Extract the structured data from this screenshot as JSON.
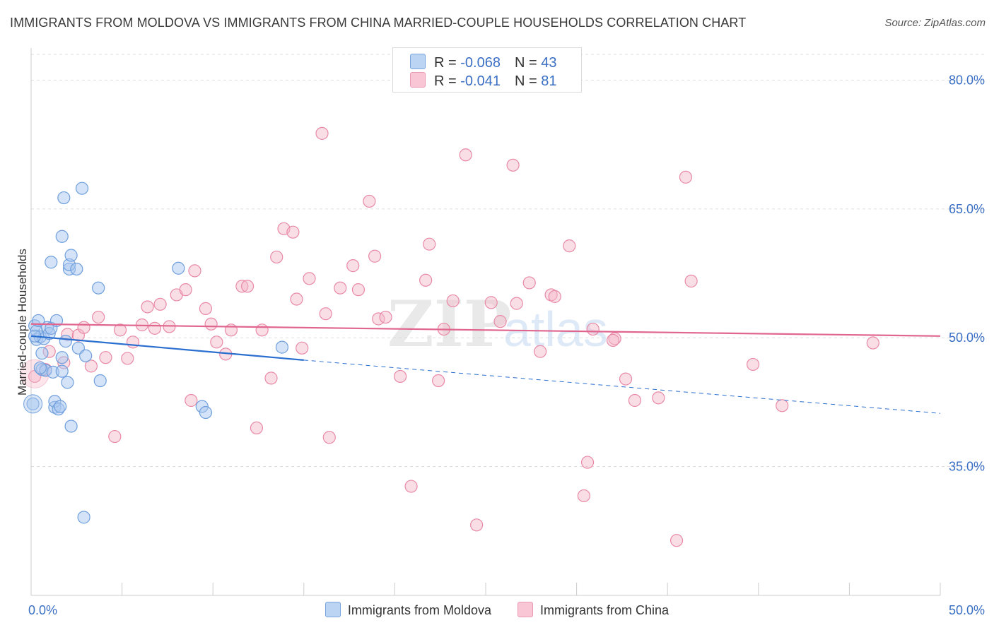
{
  "title": "IMMIGRANTS FROM MOLDOVA VS IMMIGRANTS FROM CHINA MARRIED-COUPLE HOUSEHOLDS CORRELATION CHART",
  "source": "Source: ZipAtlas.com",
  "colors": {
    "moldova_fill": "#a9c8f0",
    "moldova_stroke": "#6f9fdc",
    "moldova_line": "#2a6fcf",
    "china_fill": "#f5b6c8",
    "china_stroke": "#e88aa7",
    "china_line": "#e0668f",
    "axis_label": "#3a6fc4",
    "grid": "#dddddd"
  },
  "legend": {
    "rows": [
      {
        "r_label": "R = ",
        "r_value": "-0.068",
        "n_label": "N = ",
        "n_value": "43"
      },
      {
        "r_label": "R = ",
        "r_value": "-0.041",
        "n_label": "N = ",
        "n_value": "81"
      }
    ]
  },
  "chart_data": {
    "type": "scatter",
    "title": "IMMIGRANTS FROM MOLDOVA VS IMMIGRANTS FROM CHINA MARRIED-COUPLE HOUSEHOLDS CORRELATION CHART",
    "xlabel": "",
    "ylabel": "Married-couple Households",
    "xlim": [
      0,
      50
    ],
    "ylim": [
      20,
      83
    ],
    "x_tick_labels": [
      {
        "value": 0,
        "label": "0.0%"
      },
      {
        "value": 50,
        "label": "50.0%"
      }
    ],
    "y_tick_labels": [
      {
        "value": 80,
        "label": "80.0%"
      },
      {
        "value": 65,
        "label": "65.0%"
      },
      {
        "value": 50,
        "label": "50.0%"
      },
      {
        "value": 35,
        "label": "35.0%"
      }
    ],
    "watermark": {
      "zip": "ZIP",
      "atlas": "atlas"
    },
    "series": [
      {
        "name": "Immigrants from Moldova",
        "trend": {
          "x0": 0,
          "y0": 50.2,
          "x1": 15,
          "y1": 47.4,
          "dash_to_x": 50,
          "dash_to_y": 41.2
        },
        "points": [
          [
            0.1,
            42.3
          ],
          [
            0.2,
            51.4
          ],
          [
            0.3,
            50.8
          ],
          [
            0.3,
            49.8
          ],
          [
            0.4,
            52.0
          ],
          [
            0.5,
            50.1
          ],
          [
            0.6,
            48.2
          ],
          [
            0.6,
            46.3
          ],
          [
            0.7,
            49.9
          ],
          [
            0.8,
            46.2
          ],
          [
            0.9,
            51.2
          ],
          [
            1.0,
            50.5
          ],
          [
            1.1,
            51.1
          ],
          [
            1.1,
            58.8
          ],
          [
            1.2,
            46.0
          ],
          [
            1.3,
            41.9
          ],
          [
            1.3,
            42.6
          ],
          [
            1.4,
            52.0
          ],
          [
            1.5,
            41.7
          ],
          [
            1.6,
            42.0
          ],
          [
            1.7,
            47.7
          ],
          [
            1.7,
            46.1
          ],
          [
            1.7,
            61.8
          ],
          [
            1.8,
            66.3
          ],
          [
            1.9,
            49.6
          ],
          [
            2.0,
            44.8
          ],
          [
            2.1,
            58.0
          ],
          [
            2.1,
            58.5
          ],
          [
            2.2,
            59.6
          ],
          [
            2.2,
            39.7
          ],
          [
            2.5,
            58.0
          ],
          [
            2.6,
            48.8
          ],
          [
            2.8,
            67.4
          ],
          [
            2.9,
            29.1
          ],
          [
            3.0,
            47.9
          ],
          [
            3.7,
            55.8
          ],
          [
            3.8,
            45.0
          ],
          [
            8.1,
            58.1
          ],
          [
            9.4,
            42.0
          ],
          [
            9.6,
            41.3
          ],
          [
            13.8,
            48.9
          ],
          [
            0.2,
            50.2
          ],
          [
            0.5,
            46.5
          ]
        ]
      },
      {
        "name": "Immigrants from China",
        "trend": {
          "x0": 0,
          "y0": 51.6,
          "x1": 50,
          "y1": 50.2
        },
        "points": [
          [
            0.2,
            45.5
          ],
          [
            0.8,
            46.3
          ],
          [
            1.0,
            48.4
          ],
          [
            1.8,
            47.1
          ],
          [
            2.0,
            50.4
          ],
          [
            2.6,
            50.3
          ],
          [
            2.9,
            51.2
          ],
          [
            3.3,
            46.7
          ],
          [
            3.7,
            52.4
          ],
          [
            4.1,
            47.7
          ],
          [
            4.6,
            38.5
          ],
          [
            4.9,
            50.9
          ],
          [
            5.3,
            47.6
          ],
          [
            5.6,
            49.5
          ],
          [
            6.1,
            51.5
          ],
          [
            6.4,
            53.6
          ],
          [
            6.8,
            51.1
          ],
          [
            7.1,
            53.9
          ],
          [
            7.6,
            51.3
          ],
          [
            8.0,
            55.0
          ],
          [
            8.5,
            55.6
          ],
          [
            8.8,
            42.7
          ],
          [
            9.0,
            57.8
          ],
          [
            9.6,
            53.4
          ],
          [
            9.9,
            51.6
          ],
          [
            10.2,
            49.5
          ],
          [
            10.7,
            48.1
          ],
          [
            11.0,
            50.9
          ],
          [
            11.6,
            56.0
          ],
          [
            11.9,
            56.0
          ],
          [
            12.4,
            39.5
          ],
          [
            12.7,
            50.9
          ],
          [
            13.2,
            45.3
          ],
          [
            13.5,
            59.4
          ],
          [
            13.9,
            62.7
          ],
          [
            14.4,
            62.3
          ],
          [
            14.6,
            54.5
          ],
          [
            14.9,
            48.8
          ],
          [
            15.3,
            56.9
          ],
          [
            16.0,
            73.8
          ],
          [
            16.2,
            52.8
          ],
          [
            16.4,
            38.4
          ],
          [
            17.0,
            55.8
          ],
          [
            17.7,
            58.4
          ],
          [
            18.0,
            55.6
          ],
          [
            18.6,
            65.9
          ],
          [
            18.9,
            59.5
          ],
          [
            19.1,
            52.2
          ],
          [
            19.5,
            52.4
          ],
          [
            20.3,
            45.5
          ],
          [
            20.9,
            32.7
          ],
          [
            21.7,
            56.7
          ],
          [
            21.9,
            60.9
          ],
          [
            22.4,
            45.0
          ],
          [
            22.7,
            51.0
          ],
          [
            23.2,
            54.3
          ],
          [
            23.9,
            71.3
          ],
          [
            24.5,
            28.2
          ],
          [
            25.3,
            54.1
          ],
          [
            25.8,
            51.9
          ],
          [
            26.5,
            70.1
          ],
          [
            26.7,
            54.0
          ],
          [
            27.4,
            56.4
          ],
          [
            28.0,
            48.4
          ],
          [
            28.6,
            55.0
          ],
          [
            28.8,
            54.8
          ],
          [
            29.6,
            60.7
          ],
          [
            30.4,
            31.6
          ],
          [
            30.6,
            35.5
          ],
          [
            30.9,
            51.0
          ],
          [
            32.1,
            49.9
          ],
          [
            32.7,
            45.2
          ],
          [
            33.2,
            42.7
          ],
          [
            34.5,
            43.0
          ],
          [
            35.5,
            26.4
          ],
          [
            36.0,
            68.7
          ],
          [
            36.3,
            56.6
          ],
          [
            39.7,
            46.9
          ],
          [
            41.3,
            42.1
          ],
          [
            46.3,
            49.4
          ],
          [
            32.0,
            49.7
          ]
        ]
      }
    ]
  },
  "bottom_legend": {
    "moldova_label": "Immigrants from Moldova",
    "china_label": "Immigrants from China"
  }
}
